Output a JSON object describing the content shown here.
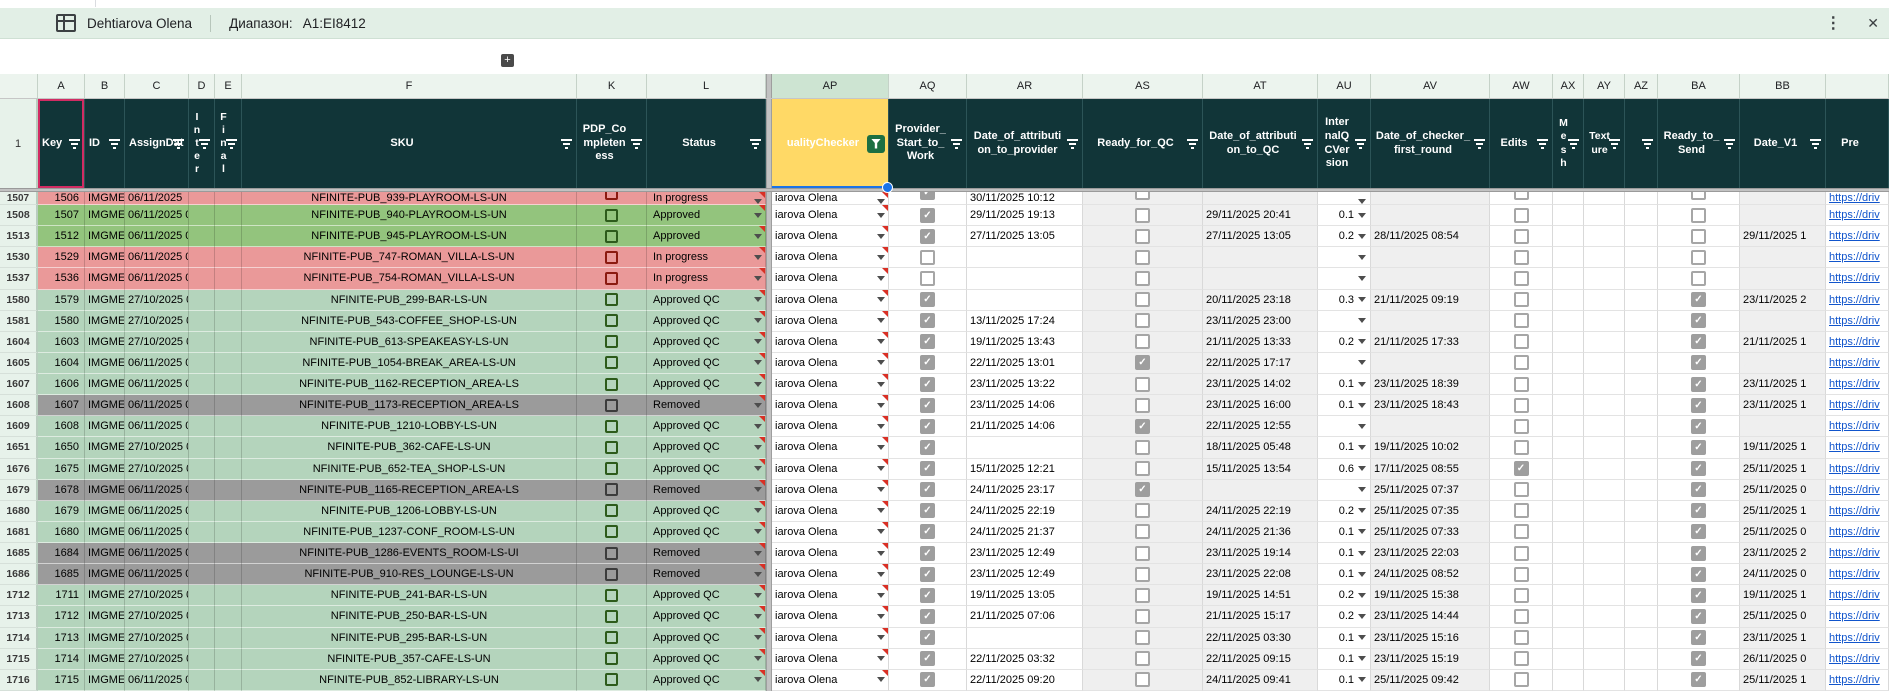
{
  "filter_bar": {
    "view_name": "Dehtiarova Olena",
    "range_label": "Диапазон:",
    "range_value": "A1:EI8412"
  },
  "icons": {
    "kebab": "⋮",
    "close": "✕",
    "plus": "+",
    "check": "✓"
  },
  "colors": {
    "header": "#113538",
    "filter_bar_bg": "#e2efe6",
    "approved": "#93c47d",
    "in_progress": "#ea9999",
    "approved_qc": "#b4d4bc",
    "removed": "#9b9b9b",
    "active_filter_cell": "#ffd966",
    "active_filter_button": "#1d6f42",
    "link": "#1155cc",
    "selection_a1": "#d12c63",
    "selection_ap1": "#1a73e8",
    "checkbox_checked": "#9e9e9e"
  },
  "header_row_number": "1",
  "link_text": "https://driv",
  "columns": [
    {
      "letter": "A",
      "label": "Key",
      "filter": true
    },
    {
      "letter": "B",
      "label": "ID",
      "filter": true
    },
    {
      "letter": "C",
      "label": "AssignDat",
      "filter": true
    },
    {
      "letter": "D",
      "label": "Inter",
      "vertical": true,
      "filter": true
    },
    {
      "letter": "E",
      "label": "Final",
      "vertical": true,
      "filter": true
    },
    {
      "letter": "F",
      "label": "SKU",
      "filter": true
    },
    {
      "letter": "K",
      "label": "PDP_Completeness",
      "filter": true
    },
    {
      "letter": "L",
      "label": "Status",
      "filter": true
    },
    {
      "letter": "AP",
      "label": "ualityChecker",
      "filter": true,
      "active": true
    },
    {
      "letter": "AQ",
      "label": "Provider_Start_to_Work",
      "filter": true
    },
    {
      "letter": "AR",
      "label": "Date_of_attribution_to_provider",
      "filter": true
    },
    {
      "letter": "AS",
      "label": "Ready_for_QC",
      "filter": true
    },
    {
      "letter": "AT",
      "label": "Date_of_attribution_to_QC",
      "filter": true
    },
    {
      "letter": "AU",
      "label": "InternalQCVersion",
      "filter": true
    },
    {
      "letter": "AV",
      "label": "Date_of_checker_first_round",
      "filter": true
    },
    {
      "letter": "AW",
      "label": "Edits",
      "filter": true
    },
    {
      "letter": "AX",
      "label": "Mesh",
      "vertical": true,
      "filter": true
    },
    {
      "letter": "AY",
      "label": "Texture",
      "vertical": true,
      "filter": true
    },
    {
      "letter": "AZ",
      "label": "",
      "filter": true
    },
    {
      "letter": "BA",
      "label": "Ready_to_Send",
      "filter": true
    },
    {
      "letter": "BB",
      "label": "Date_V1",
      "filter": true
    },
    {
      "letter": "",
      "label": "Pre",
      "filter": false
    }
  ],
  "rows": [
    {
      "num": "1507",
      "partial": true,
      "tint": "in_progress",
      "key": "1506",
      "id": "IMGMET",
      "assign_date": "06/11/2025",
      "sku": "NFINITE-PUB_939-PLAYROOM-LS-UN",
      "status": "In progress",
      "checker": "iarova Olena",
      "provider_started": true,
      "date_attr_provider": "30/11/2025 10:12",
      "ready_for_qc": false,
      "date_attr_qc": "",
      "qc_version": "",
      "date_checker_first": "",
      "edits": false,
      "ready_to_send": false,
      "date_v1": ""
    },
    {
      "num": "1508",
      "tint": "approved",
      "key": "1507",
      "id": "IMGMET",
      "assign_date": "06/11/2025 0",
      "sku": "NFINITE-PUB_940-PLAYROOM-LS-UN",
      "status": "Approved",
      "checker": "iarova Olena",
      "provider_started": true,
      "date_attr_provider": "29/11/2025 19:13",
      "ready_for_qc": false,
      "date_attr_qc": "29/11/2025 20:41",
      "qc_version": "0.1",
      "date_checker_first": "",
      "edits": false,
      "ready_to_send": false,
      "date_v1": ""
    },
    {
      "num": "1513",
      "tint": "approved",
      "key": "1512",
      "id": "IMGMET",
      "assign_date": "06/11/2025 0",
      "sku": "NFINITE-PUB_945-PLAYROOM-LS-UN",
      "status": "Approved",
      "checker": "iarova Olena",
      "provider_started": true,
      "date_attr_provider": "27/11/2025 13:05",
      "ready_for_qc": false,
      "date_attr_qc": "27/11/2025 13:05",
      "qc_version": "0.2",
      "date_checker_first": "28/11/2025 08:54",
      "edits": false,
      "ready_to_send": false,
      "date_v1": "29/11/2025 1"
    },
    {
      "num": "1530",
      "tint": "in_progress",
      "key": "1529",
      "id": "IMGMET",
      "assign_date": "06/11/2025 0",
      "sku": "NFINITE-PUB_747-ROMAN_VILLA-LS-UN",
      "status": "In progress",
      "checker": "iarova Olena",
      "provider_started": false,
      "date_attr_provider": "",
      "ready_for_qc": false,
      "date_attr_qc": "",
      "qc_version": "",
      "date_checker_first": "",
      "edits": false,
      "ready_to_send": false,
      "date_v1": ""
    },
    {
      "num": "1537",
      "tint": "in_progress",
      "key": "1536",
      "id": "IMGMET",
      "assign_date": "06/11/2025 0",
      "sku": "NFINITE-PUB_754-ROMAN_VILLA-LS-UN",
      "status": "In progress",
      "checker": "iarova Olena",
      "provider_started": false,
      "date_attr_provider": "",
      "ready_for_qc": false,
      "date_attr_qc": "",
      "qc_version": "",
      "date_checker_first": "",
      "edits": false,
      "ready_to_send": false,
      "date_v1": ""
    },
    {
      "num": "1580",
      "tint": "approved_qc",
      "key": "1579",
      "id": "IMGMET",
      "assign_date": "27/10/2025 0",
      "sku": "NFINITE-PUB_299-BAR-LS-UN",
      "status": "Approved QC",
      "checker": "iarova Olena",
      "provider_started": true,
      "date_attr_provider": "",
      "ready_for_qc": false,
      "date_attr_qc": "20/11/2025 23:18",
      "qc_version": "0.3",
      "date_checker_first": "21/11/2025 09:19",
      "edits": false,
      "ready_to_send": true,
      "date_v1": "23/11/2025 2"
    },
    {
      "num": "1581",
      "tint": "approved_qc",
      "key": "1580",
      "id": "IMGMET",
      "assign_date": "27/10/2025 0",
      "sku": "NFINITE-PUB_543-COFFEE_SHOP-LS-UN",
      "status": "Approved QC",
      "checker": "iarova Olena",
      "provider_started": true,
      "date_attr_provider": "13/11/2025 17:24",
      "ready_for_qc": false,
      "date_attr_qc": "23/11/2025 23:00",
      "qc_version": "",
      "date_checker_first": "",
      "edits": false,
      "ready_to_send": true,
      "date_v1": ""
    },
    {
      "num": "1604",
      "tint": "approved_qc",
      "key": "1603",
      "id": "IMGMET",
      "assign_date": "27/10/2025 0",
      "sku": "NFINITE-PUB_613-SPEAKEASY-LS-UN",
      "status": "Approved QC",
      "checker": "iarova Olena",
      "provider_started": true,
      "date_attr_provider": "19/11/2025 13:43",
      "ready_for_qc": false,
      "date_attr_qc": "21/11/2025 13:33",
      "qc_version": "0.2",
      "date_checker_first": "21/11/2025 17:33",
      "edits": false,
      "ready_to_send": true,
      "date_v1": "21/11/2025 1"
    },
    {
      "num": "1605",
      "tint": "approved_qc",
      "key": "1604",
      "id": "IMGMET",
      "assign_date": "06/11/2025 0",
      "sku": "NFINITE-PUB_1054-BREAK_AREA-LS-UN",
      "status": "Approved QC",
      "checker": "iarova Olena",
      "provider_started": true,
      "date_attr_provider": "22/11/2025 13:01",
      "ready_for_qc": true,
      "date_attr_qc": "22/11/2025 17:17",
      "qc_version": "",
      "date_checker_first": "",
      "edits": false,
      "ready_to_send": true,
      "date_v1": ""
    },
    {
      "num": "1607",
      "tint": "approved_qc",
      "key": "1606",
      "id": "IMGMET",
      "assign_date": "06/11/2025 0",
      "sku": "NFINITE-PUB_1162-RECEPTION_AREA-LS",
      "status": "Approved QC",
      "checker": "iarova Olena",
      "provider_started": true,
      "date_attr_provider": "23/11/2025 13:22",
      "ready_for_qc": false,
      "date_attr_qc": "23/11/2025 14:02",
      "qc_version": "0.1",
      "date_checker_first": "23/11/2025 18:39",
      "edits": false,
      "ready_to_send": true,
      "date_v1": "23/11/2025 1"
    },
    {
      "num": "1608",
      "tint": "removed",
      "key": "1607",
      "id": "IMGMET",
      "assign_date": "06/11/2025 0",
      "sku": "NFINITE-PUB_1173-RECEPTION_AREA-LS",
      "status": "Removed",
      "checker": "iarova Olena",
      "provider_started": true,
      "date_attr_provider": "23/11/2025 14:06",
      "ready_for_qc": false,
      "date_attr_qc": "23/11/2025 16:00",
      "qc_version": "0.1",
      "date_checker_first": "23/11/2025 18:43",
      "edits": false,
      "ready_to_send": true,
      "date_v1": "23/11/2025 1"
    },
    {
      "num": "1609",
      "tint": "approved_qc",
      "key": "1608",
      "id": "IMGMET",
      "assign_date": "06/11/2025 0",
      "sku": "NFINITE-PUB_1210-LOBBY-LS-UN",
      "status": "Approved QC",
      "checker": "iarova Olena",
      "provider_started": true,
      "date_attr_provider": "21/11/2025 14:06",
      "ready_for_qc": true,
      "date_attr_qc": "22/11/2025 12:55",
      "qc_version": "",
      "date_checker_first": "",
      "edits": false,
      "ready_to_send": true,
      "date_v1": ""
    },
    {
      "num": "1651",
      "tint": "approved_qc",
      "key": "1650",
      "id": "IMGMET",
      "assign_date": "27/10/2025 0",
      "sku": "NFINITE-PUB_362-CAFE-LS-UN",
      "status": "Approved QC",
      "checker": "iarova Olena",
      "provider_started": true,
      "date_attr_provider": "",
      "ready_for_qc": false,
      "date_attr_qc": "18/11/2025 05:48",
      "qc_version": "0.1",
      "date_checker_first": "19/11/2025 10:02",
      "edits": false,
      "ready_to_send": true,
      "date_v1": "19/11/2025 1"
    },
    {
      "num": "1676",
      "tint": "approved_qc",
      "key": "1675",
      "id": "IMGMET",
      "assign_date": "27/10/2025 0",
      "sku": "NFINITE-PUB_652-TEA_SHOP-LS-UN",
      "status": "Approved QC",
      "checker": "iarova Olena",
      "provider_started": true,
      "date_attr_provider": "15/11/2025 12:21",
      "ready_for_qc": false,
      "date_attr_qc": "15/11/2025 13:54",
      "qc_version": "0.6",
      "date_checker_first": "17/11/2025 08:55",
      "edits": true,
      "ready_to_send": true,
      "date_v1": "25/11/2025 1"
    },
    {
      "num": "1679",
      "tint": "removed",
      "key": "1678",
      "id": "IMGMET",
      "assign_date": "06/11/2025 0",
      "sku": "NFINITE-PUB_1165-RECEPTION_AREA-LS",
      "status": "Removed",
      "checker": "iarova Olena",
      "provider_started": true,
      "date_attr_provider": "24/11/2025 23:17",
      "ready_for_qc": true,
      "date_attr_qc": "",
      "qc_version": "",
      "date_checker_first": "25/11/2025 07:37",
      "edits": false,
      "ready_to_send": true,
      "date_v1": "25/11/2025 0"
    },
    {
      "num": "1680",
      "tint": "approved_qc",
      "key": "1679",
      "id": "IMGMET",
      "assign_date": "06/11/2025 0",
      "sku": "NFINITE-PUB_1206-LOBBY-LS-UN",
      "status": "Approved QC",
      "checker": "iarova Olena",
      "provider_started": true,
      "date_attr_provider": "24/11/2025 22:19",
      "ready_for_qc": false,
      "date_attr_qc": "24/11/2025 22:19",
      "qc_version": "0.2",
      "date_checker_first": "25/11/2025 07:35",
      "edits": false,
      "ready_to_send": true,
      "date_v1": "25/11/2025 1"
    },
    {
      "num": "1681",
      "tint": "approved_qc",
      "key": "1680",
      "id": "IMGMET",
      "assign_date": "06/11/2025 0",
      "sku": "NFINITE-PUB_1237-CONF_ROOM-LS-UN",
      "status": "Approved QC",
      "checker": "iarova Olena",
      "provider_started": true,
      "date_attr_provider": "24/11/2025 21:37",
      "ready_for_qc": false,
      "date_attr_qc": "24/11/2025 21:36",
      "qc_version": "0.1",
      "date_checker_first": "25/11/2025 07:33",
      "edits": false,
      "ready_to_send": true,
      "date_v1": "25/11/2025 0"
    },
    {
      "num": "1685",
      "tint": "removed",
      "key": "1684",
      "id": "IMGMET",
      "assign_date": "06/11/2025 0",
      "sku": "NFINITE-PUB_1286-EVENTS_ROOM-LS-UI",
      "status": "Removed",
      "checker": "iarova Olena",
      "provider_started": true,
      "date_attr_provider": "23/11/2025 12:49",
      "ready_for_qc": false,
      "date_attr_qc": "23/11/2025 19:14",
      "qc_version": "0.1",
      "date_checker_first": "23/11/2025 22:03",
      "edits": false,
      "ready_to_send": true,
      "date_v1": "23/11/2025 2"
    },
    {
      "num": "1686",
      "tint": "removed",
      "key": "1685",
      "id": "IMGMET",
      "assign_date": "06/11/2025 0",
      "sku": "NFINITE-PUB_910-RES_LOUNGE-LS-UN",
      "status": "Removed",
      "checker": "iarova Olena",
      "provider_started": true,
      "date_attr_provider": "23/11/2025 12:49",
      "ready_for_qc": false,
      "date_attr_qc": "23/11/2025 22:08",
      "qc_version": "0.1",
      "date_checker_first": "24/11/2025 08:52",
      "edits": false,
      "ready_to_send": true,
      "date_v1": "24/11/2025 0"
    },
    {
      "num": "1712",
      "tint": "approved_qc",
      "key": "1711",
      "id": "IMGMET",
      "assign_date": "27/10/2025 0",
      "sku": "NFINITE-PUB_241-BAR-LS-UN",
      "status": "Approved QC",
      "checker": "iarova Olena",
      "provider_started": true,
      "date_attr_provider": "19/11/2025 13:05",
      "ready_for_qc": false,
      "date_attr_qc": "19/11/2025 14:51",
      "qc_version": "0.2",
      "date_checker_first": "19/11/2025 15:38",
      "edits": false,
      "ready_to_send": true,
      "date_v1": "19/11/2025 1"
    },
    {
      "num": "1713",
      "tint": "approved_qc",
      "key": "1712",
      "id": "IMGMET",
      "assign_date": "27/10/2025 0",
      "sku": "NFINITE-PUB_250-BAR-LS-UN",
      "status": "Approved QC",
      "checker": "iarova Olena",
      "provider_started": true,
      "date_attr_provider": "21/11/2025 07:06",
      "ready_for_qc": false,
      "date_attr_qc": "21/11/2025 15:17",
      "qc_version": "0.2",
      "date_checker_first": "23/11/2025 14:44",
      "edits": false,
      "ready_to_send": true,
      "date_v1": "25/11/2025 0"
    },
    {
      "num": "1714",
      "tint": "approved_qc",
      "key": "1713",
      "id": "IMGMET",
      "assign_date": "27/10/2025 0",
      "sku": "NFINITE-PUB_295-BAR-LS-UN",
      "status": "Approved QC",
      "checker": "iarova Olena",
      "provider_started": true,
      "date_attr_provider": "",
      "ready_for_qc": false,
      "date_attr_qc": "22/11/2025 03:30",
      "qc_version": "0.1",
      "date_checker_first": "23/11/2025 15:16",
      "edits": false,
      "ready_to_send": true,
      "date_v1": "23/11/2025 1"
    },
    {
      "num": "1715",
      "tint": "approved_qc",
      "key": "1714",
      "id": "IMGMET",
      "assign_date": "27/10/2025 0",
      "sku": "NFINITE-PUB_357-CAFE-LS-UN",
      "status": "Approved QC",
      "checker": "iarova Olena",
      "provider_started": true,
      "date_attr_provider": "22/11/2025 03:32",
      "ready_for_qc": false,
      "date_attr_qc": "22/11/2025 09:15",
      "qc_version": "0.1",
      "date_checker_first": "23/11/2025 15:19",
      "edits": false,
      "ready_to_send": true,
      "date_v1": "26/11/2025 0"
    },
    {
      "num": "1716",
      "tint": "approved_qc",
      "key": "1715",
      "id": "IMGMET",
      "assign_date": "06/11/2025 0",
      "sku": "NFINITE-PUB_852-LIBRARY-LS-UN",
      "status": "Approved QC",
      "checker": "iarova Olena",
      "provider_started": true,
      "date_attr_provider": "22/11/2025 09:20",
      "ready_for_qc": false,
      "date_attr_qc": "24/11/2025 09:41",
      "qc_version": "0.1",
      "date_checker_first": "25/11/2025 09:42",
      "edits": false,
      "ready_to_send": true,
      "date_v1": "25/11/2025 1"
    }
  ]
}
